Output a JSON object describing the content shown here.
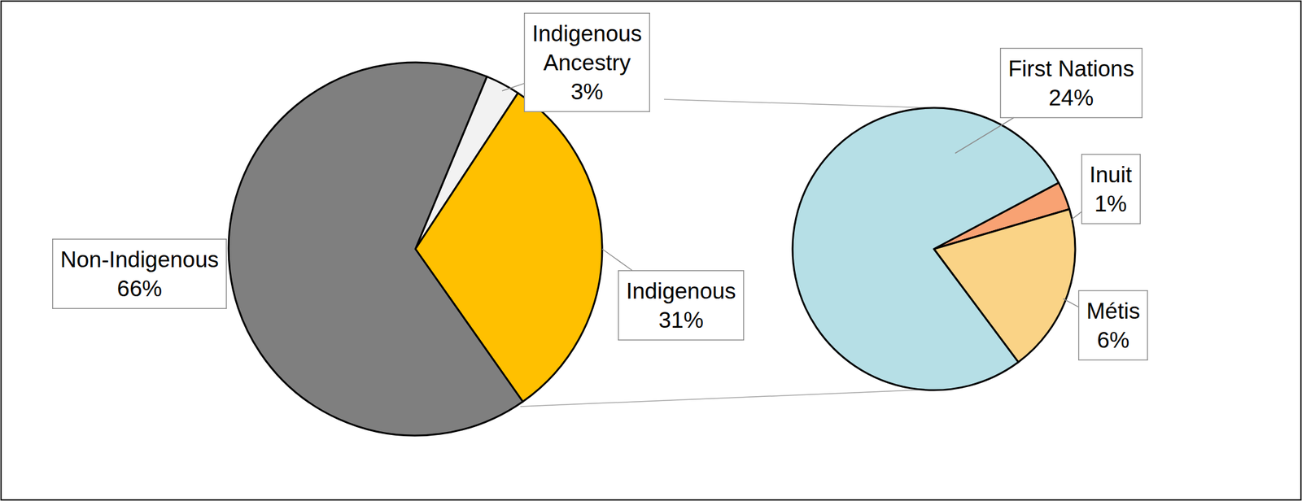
{
  "chart_data": [
    {
      "type": "pie",
      "categories": [
        "Indigenous Ancestry",
        "Indigenous",
        "Non-Indigenous"
      ],
      "values": [
        3,
        31,
        66
      ],
      "value_labels": [
        "3%",
        "31%",
        "66%"
      ],
      "colors": [
        "#f2f2f2",
        "#ffc000",
        "#7f7f7f"
      ],
      "data_labels": true
    },
    {
      "type": "pie",
      "categories": [
        "Inuit",
        "Métis",
        "First Nations"
      ],
      "values": [
        1,
        6,
        24
      ],
      "value_labels": [
        "1%",
        "6%",
        "24%"
      ],
      "colors": [
        "#f8a273",
        "#fad386",
        "#b6dfe6"
      ],
      "data_labels": true
    }
  ]
}
